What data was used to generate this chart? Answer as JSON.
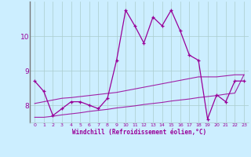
{
  "xlabel": "Windchill (Refroidissement éolien,°C)",
  "bg_color": "#cceeff",
  "grid_color": "#aacccc",
  "line_color": "#990099",
  "spine_color": "#777777",
  "xlim": [
    -0.5,
    23.5
  ],
  "ylim": [
    7.5,
    11.0
  ],
  "xticks": [
    0,
    1,
    2,
    3,
    4,
    5,
    6,
    7,
    8,
    9,
    10,
    11,
    12,
    13,
    14,
    15,
    16,
    17,
    18,
    19,
    20,
    21,
    22,
    23
  ],
  "yticks": [
    8,
    9,
    10
  ],
  "main_y": [
    8.7,
    8.4,
    7.7,
    7.9,
    8.1,
    8.1,
    8.0,
    7.9,
    8.2,
    9.3,
    10.75,
    10.3,
    9.8,
    10.55,
    10.3,
    10.75,
    10.15,
    9.45,
    9.3,
    7.6,
    8.3,
    8.1,
    8.7,
    8.7
  ],
  "trend_upper_y": [
    8.05,
    8.1,
    8.15,
    8.2,
    8.22,
    8.25,
    8.28,
    8.31,
    8.34,
    8.37,
    8.42,
    8.47,
    8.52,
    8.57,
    8.62,
    8.67,
    8.72,
    8.77,
    8.82,
    8.82,
    8.82,
    8.85,
    8.88,
    8.88
  ],
  "trend_lower_y": [
    7.65,
    7.65,
    7.68,
    7.72,
    7.75,
    7.78,
    7.82,
    7.85,
    7.88,
    7.92,
    7.95,
    7.98,
    8.02,
    8.05,
    8.08,
    8.12,
    8.15,
    8.18,
    8.22,
    8.25,
    8.28,
    8.32,
    8.35,
    8.88
  ]
}
